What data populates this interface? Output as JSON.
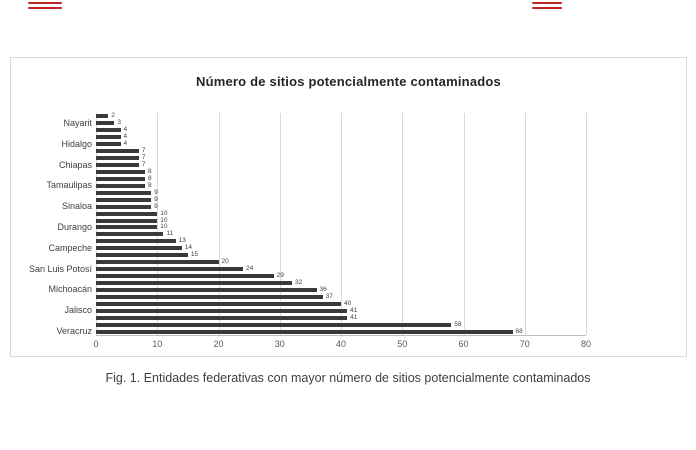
{
  "page": {
    "caption": "Fig. 1. Entidades federativas con mayor número de sitios potencialmente contaminados"
  },
  "decor": {
    "red_mark_color": "#c22323"
  },
  "chart_data": {
    "type": "bar",
    "orientation": "horizontal",
    "title": "Número de sitios potencialmente contaminados",
    "categories": [
      "",
      "Nayarit",
      "",
      "",
      "Hidalgo",
      "",
      "",
      "Chiapas",
      "",
      "",
      "Tamaulipas",
      "",
      "",
      "Sinaloa",
      "",
      "",
      "Durango",
      "",
      "",
      "Campeche",
      "",
      "",
      "San Luis Potosí",
      "",
      "",
      "Michoacán",
      "",
      "",
      "Jalisco",
      "",
      "",
      "Veracruz"
    ],
    "values": [
      2,
      3,
      4,
      4,
      4,
      7,
      7,
      7,
      8,
      8,
      8,
      9,
      9,
      9,
      10,
      10,
      10,
      11,
      13,
      14,
      15,
      20,
      24,
      29,
      32,
      36,
      37,
      40,
      41,
      41,
      58,
      68
    ],
    "xlabel": "",
    "ylabel": "",
    "xlim": [
      0,
      80
    ],
    "xticks": [
      0,
      10,
      20,
      30,
      40,
      50,
      60,
      70,
      80
    ],
    "grid": true,
    "legend": "none",
    "bar_color": "#3a3a3a",
    "value_labels_visible": true
  }
}
